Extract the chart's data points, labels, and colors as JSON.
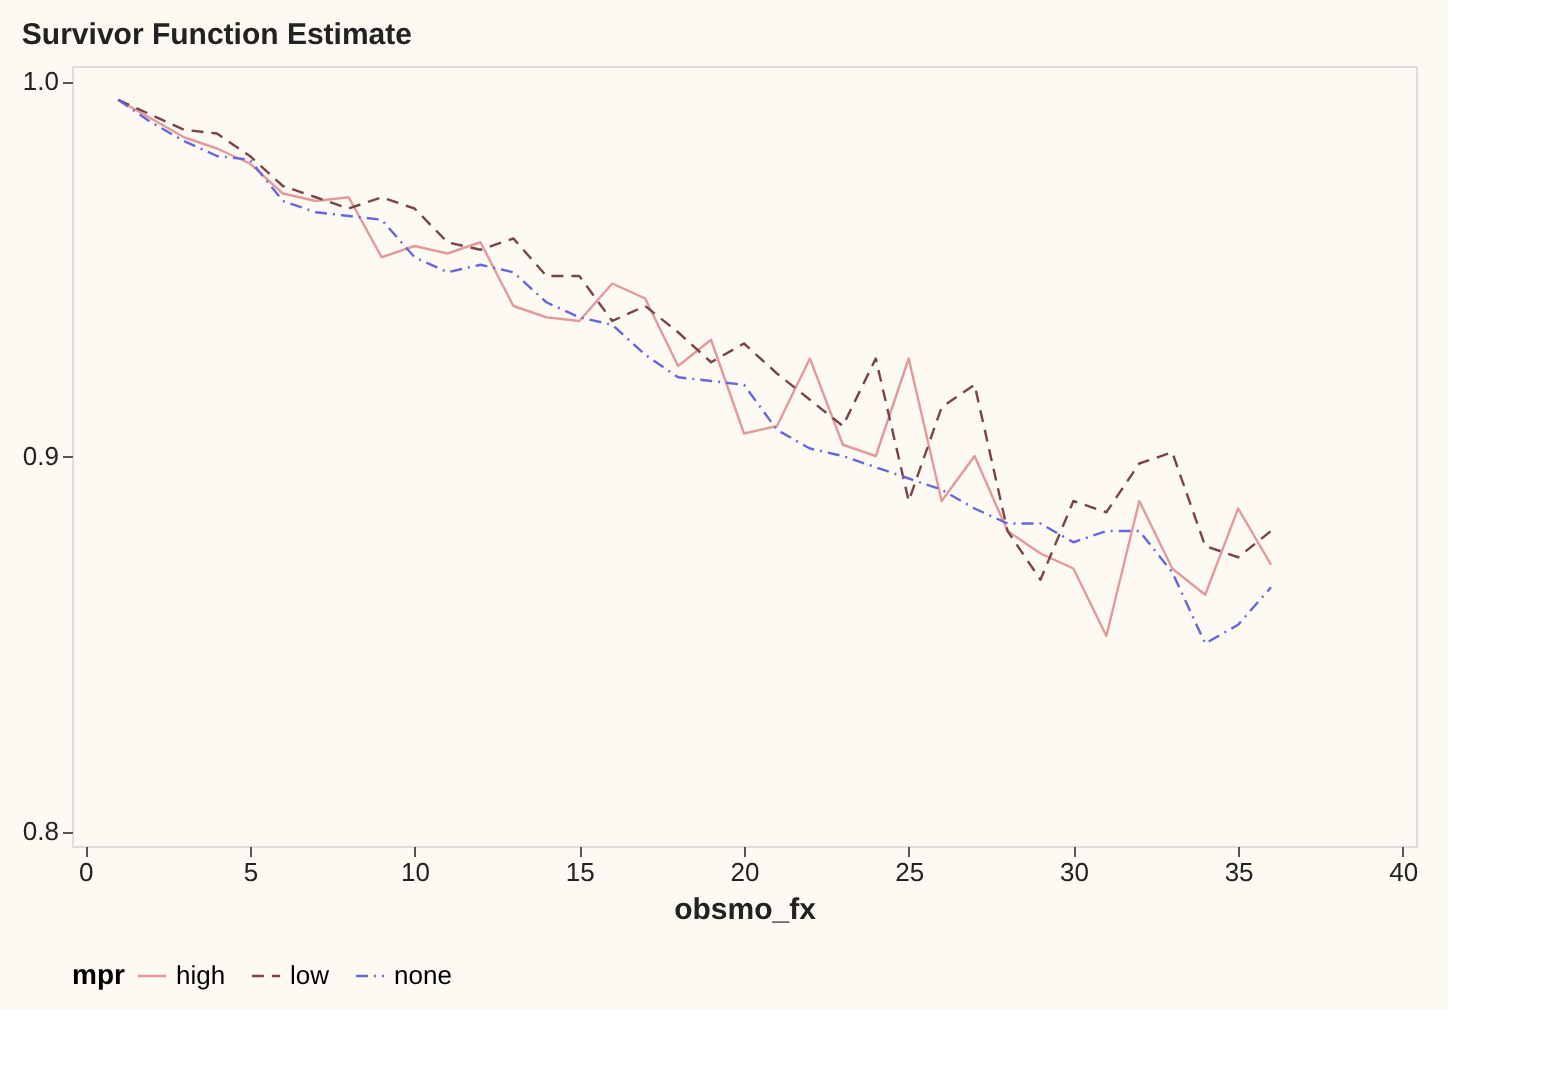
{
  "chart_data": {
    "type": "line",
    "title": "Survivor Function Estimate",
    "xlabel": "obsmo_fx",
    "legend_title": "mpr",
    "x": [
      1,
      2,
      3,
      4,
      5,
      6,
      7,
      8,
      9,
      10,
      11,
      12,
      13,
      14,
      15,
      16,
      17,
      18,
      19,
      20,
      21,
      22,
      23,
      24,
      25,
      26,
      27,
      28,
      29,
      30,
      31,
      32,
      33,
      34,
      35,
      36
    ],
    "series": [
      {
        "name": "high",
        "color": "#e39a9a",
        "line_style": "solid",
        "values": [
          0.995,
          0.99,
          0.985,
          0.982,
          0.978,
          0.97,
          0.968,
          0.969,
          0.953,
          0.956,
          0.954,
          0.957,
          0.94,
          0.937,
          0.936,
          0.946,
          0.942,
          0.924,
          0.931,
          0.906,
          0.908,
          0.926,
          0.903,
          0.9,
          0.926,
          0.888,
          0.9,
          0.88,
          0.874,
          0.87,
          0.852,
          0.888,
          0.87,
          0.863,
          0.886,
          0.871
        ]
      },
      {
        "name": "low",
        "color": "#7a4444",
        "line_style": "dashed",
        "values": [
          0.995,
          0.991,
          0.987,
          0.986,
          0.98,
          0.972,
          0.969,
          0.966,
          0.969,
          0.966,
          0.957,
          0.955,
          0.958,
          0.948,
          0.948,
          0.936,
          0.94,
          0.933,
          0.925,
          0.93,
          0.922,
          0.915,
          0.908,
          0.926,
          0.888,
          0.913,
          0.919,
          0.88,
          0.867,
          0.888,
          0.885,
          0.898,
          0.901,
          0.876,
          0.873,
          0.88
        ]
      },
      {
        "name": "none",
        "color": "#6666dd",
        "line_style": "dashdot",
        "values": [
          0.995,
          0.989,
          0.984,
          0.98,
          0.979,
          0.968,
          0.965,
          0.964,
          0.963,
          0.953,
          0.949,
          0.951,
          0.949,
          0.941,
          0.937,
          0.935,
          0.927,
          0.921,
          0.92,
          0.919,
          0.907,
          0.902,
          0.9,
          0.897,
          0.894,
          0.891,
          0.886,
          0.882,
          0.882,
          0.877,
          0.88,
          0.88,
          0.869,
          0.85,
          0.855,
          0.865
        ]
      }
    ],
    "xlim": [
      -0.4,
      40.4
    ],
    "xticks": [
      0,
      5,
      10,
      15,
      20,
      25,
      30,
      35,
      40
    ],
    "ylim": [
      0.796,
      1.004
    ],
    "yticks": [
      0.8,
      0.9,
      {
        "value": 1.0,
        "label": "1.0"
      }
    ],
    "grid": false,
    "legend": "bottom",
    "marker": "none"
  }
}
